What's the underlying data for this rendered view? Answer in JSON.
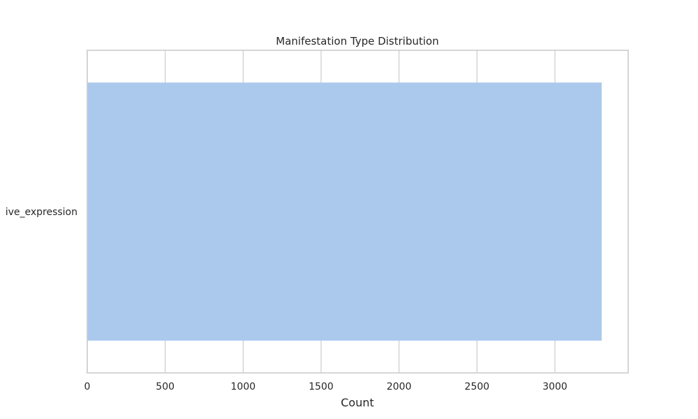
{
  "chart_data": {
    "type": "bar",
    "orientation": "horizontal",
    "title": "Manifestation Type Distribution",
    "xlabel": "Count",
    "ylabel": "",
    "categories": [
      "ive_expression"
    ],
    "values": [
      3300
    ],
    "xlim": [
      0,
      3470
    ],
    "xticks": [
      0,
      500,
      1000,
      1500,
      2000,
      2500,
      3000
    ],
    "bar_color": "#abc9ed",
    "grid": true
  }
}
